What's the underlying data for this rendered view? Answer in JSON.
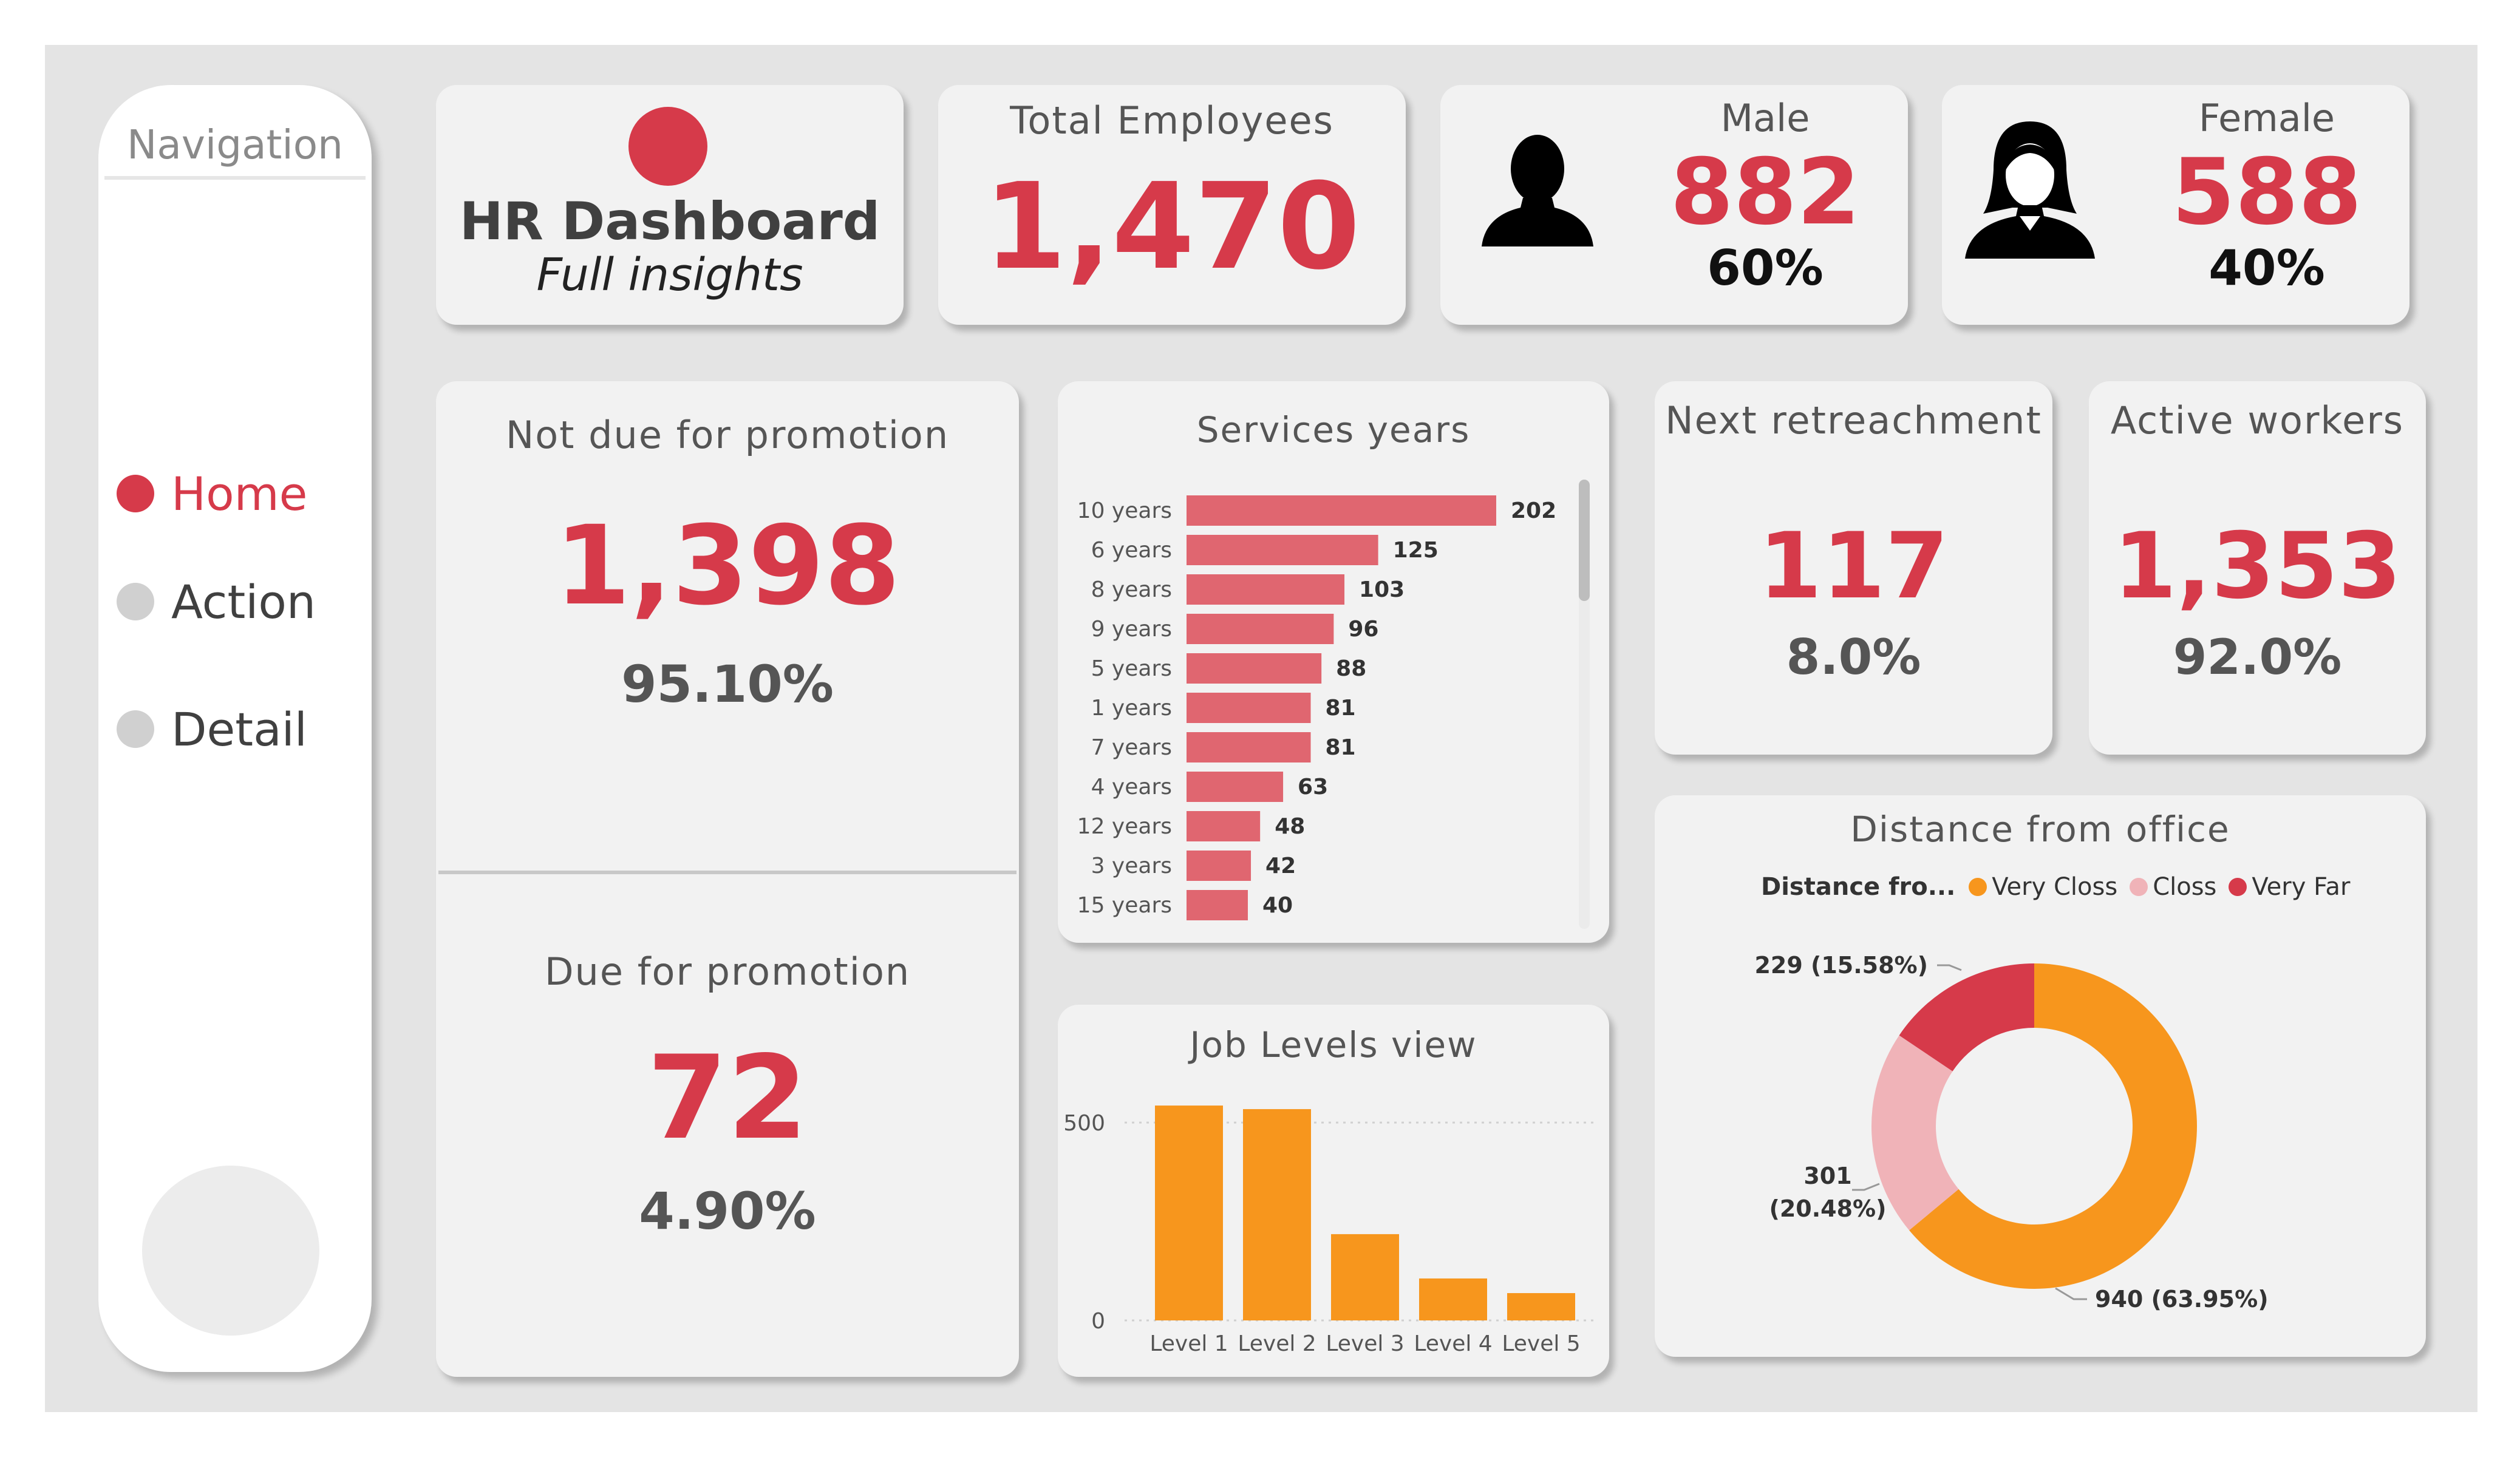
{
  "navigation": {
    "title": "Navigation",
    "items": [
      {
        "label": "Home",
        "active": true
      },
      {
        "label": "Action",
        "active": false
      },
      {
        "label": "Detail",
        "active": false
      }
    ]
  },
  "header": {
    "title": "HR Dashboard",
    "subtitle": "Full insights"
  },
  "kpis": {
    "total": {
      "title": "Total Employees",
      "value": "1,470"
    },
    "male": {
      "title": "Male",
      "value": "882",
      "pct": "60%"
    },
    "female": {
      "title": "Female",
      "value": "588",
      "pct": "40%"
    }
  },
  "promotion": {
    "not_due": {
      "title": "Not due for promotion",
      "value": "1,398",
      "pct": "95.10%"
    },
    "due": {
      "title": "Due for promotion",
      "value": "72",
      "pct": "4.90%"
    }
  },
  "retrench": {
    "title": "Next retreachment",
    "value": "117",
    "pct": "8.0%"
  },
  "active": {
    "title": "Active workers",
    "value": "1,353",
    "pct": "92.0%"
  },
  "colors": {
    "accent": "#d63a4a",
    "bar": "#e06670",
    "orange": "#f7961d",
    "pink": "#f0b3b8",
    "red": "#d63a4a"
  },
  "chart_data": [
    {
      "type": "bar",
      "orientation": "horizontal",
      "title": "Services years",
      "categories": [
        "10 years",
        "6 years",
        "8 years",
        "9 years",
        "5 years",
        "1 years",
        "7 years",
        "4 years",
        "12 years",
        "3 years",
        "15 years"
      ],
      "values": [
        202,
        125,
        103,
        96,
        88,
        81,
        81,
        63,
        48,
        42,
        40
      ]
    },
    {
      "type": "bar",
      "title": "Job Levels view",
      "categories": [
        "Level 1",
        "Level 2",
        "Level 3",
        "Level 4",
        "Level 5"
      ],
      "values": [
        543,
        534,
        218,
        106,
        69
      ],
      "y_ticks": [
        "0",
        "500"
      ],
      "ylim": [
        0,
        560
      ]
    },
    {
      "type": "pie",
      "title": "Distance from office",
      "legend_title": "Distance fro...",
      "legend_position": "top",
      "slices": [
        {
          "name": "Very Closs",
          "value": 940,
          "label": "940 (63.95%)"
        },
        {
          "name": "Closs",
          "value": 301,
          "label_line1": "301",
          "label_line2": "(20.48%)"
        },
        {
          "name": "Very Far",
          "value": 229,
          "label": "229 (15.58%)"
        }
      ]
    }
  ]
}
